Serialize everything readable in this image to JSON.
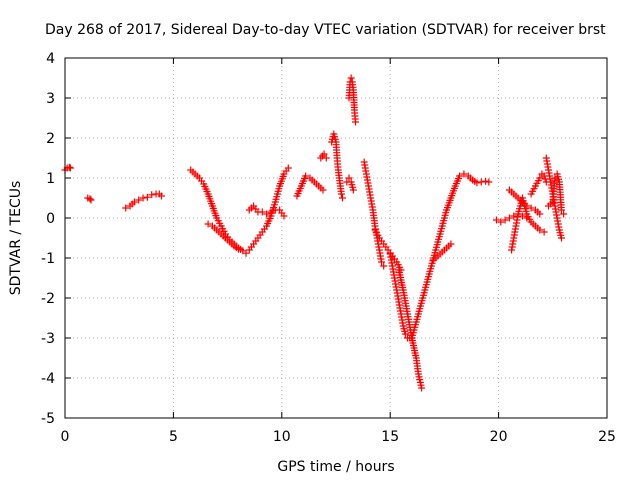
{
  "chart_data": {
    "type": "scatter",
    "title": "Day 268 of 2017, Sidereal Day-to-day VTEC variation (SDTVAR) for receiver brst",
    "xlabel": "GPS time / hours",
    "ylabel": "SDTVAR / TECUs",
    "xlim": [
      0,
      25
    ],
    "ylim": [
      -5,
      4
    ],
    "x_ticks": [
      0,
      5,
      10,
      15,
      20,
      25
    ],
    "y_ticks": [
      4,
      3,
      2,
      1,
      0,
      -1,
      -2,
      -3,
      -4,
      -5
    ],
    "grid": true,
    "legend": "none",
    "marker": "+",
    "color": "#ff0000",
    "segments": [
      [
        [
          0.0,
          1.2
        ],
        [
          0.1,
          1.25
        ],
        [
          0.2,
          1.27
        ],
        [
          0.25,
          1.25
        ]
      ],
      [
        [
          1.05,
          0.5
        ],
        [
          1.15,
          0.48
        ],
        [
          1.2,
          0.45
        ]
      ],
      [
        [
          2.8,
          0.25
        ],
        [
          3.0,
          0.3
        ],
        [
          3.2,
          0.4
        ],
        [
          3.4,
          0.45
        ],
        [
          3.6,
          0.5
        ],
        [
          3.8,
          0.52
        ],
        [
          4.0,
          0.58
        ],
        [
          4.2,
          0.6
        ],
        [
          4.35,
          0.6
        ],
        [
          4.45,
          0.55
        ]
      ],
      [
        [
          5.8,
          1.2
        ],
        [
          6.0,
          1.1
        ],
        [
          6.2,
          1.0
        ],
        [
          6.4,
          0.85
        ],
        [
          6.6,
          0.6
        ],
        [
          6.8,
          0.3
        ],
        [
          7.0,
          0.0
        ],
        [
          7.2,
          -0.2
        ],
        [
          7.4,
          -0.4
        ],
        [
          7.6,
          -0.55
        ],
        [
          7.8,
          -0.65
        ],
        [
          8.0,
          -0.75
        ],
        [
          8.2,
          -0.82
        ],
        [
          8.35,
          -0.88
        ],
        [
          8.5,
          -0.8
        ],
        [
          8.7,
          -0.65
        ],
        [
          8.9,
          -0.5
        ],
        [
          9.1,
          -0.35
        ],
        [
          9.3,
          -0.2
        ],
        [
          9.5,
          0.05
        ],
        [
          9.7,
          0.4
        ],
        [
          9.9,
          0.8
        ],
        [
          10.1,
          1.1
        ],
        [
          10.3,
          1.25
        ]
      ],
      [
        [
          6.6,
          -0.15
        ],
        [
          6.8,
          -0.2
        ],
        [
          7.0,
          -0.3
        ],
        [
          7.2,
          -0.4
        ],
        [
          7.4,
          -0.5
        ],
        [
          7.6,
          -0.6
        ],
        [
          7.8,
          -0.7
        ],
        [
          8.0,
          -0.78
        ]
      ],
      [
        [
          8.5,
          0.2
        ],
        [
          8.7,
          0.3
        ],
        [
          8.9,
          0.15
        ],
        [
          9.1,
          0.15
        ],
        [
          9.3,
          0.1
        ],
        [
          9.5,
          0.15
        ],
        [
          9.7,
          0.2
        ],
        [
          9.9,
          0.2
        ],
        [
          10.1,
          0.05
        ]
      ],
      [
        [
          10.7,
          0.55
        ],
        [
          10.9,
          0.8
        ],
        [
          11.1,
          1.05
        ],
        [
          11.3,
          1.0
        ],
        [
          11.5,
          0.9
        ],
        [
          11.7,
          0.8
        ],
        [
          11.9,
          0.7
        ]
      ],
      [
        [
          11.8,
          1.5
        ],
        [
          11.95,
          1.6
        ],
        [
          12.05,
          1.5
        ]
      ],
      [
        [
          12.3,
          1.9
        ],
        [
          12.4,
          2.1
        ],
        [
          12.5,
          1.9
        ],
        [
          12.55,
          1.5
        ],
        [
          12.6,
          1.2
        ],
        [
          12.65,
          1.0
        ],
        [
          12.7,
          0.8
        ],
        [
          12.75,
          0.6
        ],
        [
          12.8,
          0.5
        ]
      ],
      [
        [
          13.1,
          3.0
        ],
        [
          13.15,
          3.4
        ],
        [
          13.2,
          3.5
        ],
        [
          13.25,
          3.4
        ],
        [
          13.3,
          3.2
        ],
        [
          13.35,
          2.7
        ],
        [
          13.4,
          2.4
        ]
      ],
      [
        [
          13.0,
          0.9
        ],
        [
          13.1,
          1.0
        ],
        [
          13.2,
          0.9
        ],
        [
          13.3,
          0.7
        ]
      ],
      [
        [
          13.8,
          1.4
        ],
        [
          13.9,
          1.1
        ],
        [
          14.0,
          0.8
        ],
        [
          14.1,
          0.5
        ],
        [
          14.2,
          0.2
        ],
        [
          14.3,
          -0.2
        ],
        [
          14.4,
          -0.5
        ],
        [
          14.5,
          -0.8
        ],
        [
          14.6,
          -1.1
        ],
        [
          14.7,
          -1.2
        ]
      ],
      [
        [
          14.3,
          -0.3
        ],
        [
          14.5,
          -0.5
        ],
        [
          14.7,
          -0.65
        ],
        [
          14.9,
          -0.8
        ],
        [
          15.1,
          -0.95
        ],
        [
          15.3,
          -1.1
        ],
        [
          15.5,
          -1.3
        ]
      ],
      [
        [
          15.0,
          -0.9
        ],
        [
          15.1,
          -1.2
        ],
        [
          15.2,
          -1.5
        ],
        [
          15.3,
          -1.8
        ],
        [
          15.4,
          -2.1
        ],
        [
          15.5,
          -2.4
        ],
        [
          15.6,
          -2.7
        ],
        [
          15.7,
          -2.9
        ],
        [
          15.8,
          -3.0
        ],
        [
          15.9,
          -3.0
        ],
        [
          16.0,
          -3.0
        ]
      ],
      [
        [
          15.4,
          -1.3
        ],
        [
          15.6,
          -1.8
        ],
        [
          15.8,
          -2.4
        ],
        [
          16.0,
          -3.0
        ],
        [
          16.2,
          -3.5
        ],
        [
          16.3,
          -3.9
        ],
        [
          16.45,
          -4.25
        ]
      ],
      [
        [
          16.0,
          -3.0
        ],
        [
          16.2,
          -2.6
        ],
        [
          16.4,
          -2.2
        ],
        [
          16.6,
          -1.8
        ],
        [
          16.8,
          -1.4
        ],
        [
          17.0,
          -1.0
        ],
        [
          17.2,
          -0.6
        ],
        [
          17.4,
          -0.2
        ],
        [
          17.6,
          0.2
        ],
        [
          17.8,
          0.5
        ],
        [
          18.0,
          0.8
        ],
        [
          18.2,
          1.05
        ],
        [
          18.4,
          1.1
        ],
        [
          18.6,
          1.05
        ],
        [
          18.8,
          0.95
        ],
        [
          19.0,
          0.88
        ],
        [
          19.2,
          0.9
        ],
        [
          19.4,
          0.92
        ],
        [
          19.55,
          0.9
        ]
      ],
      [
        [
          17.0,
          -1.05
        ],
        [
          17.2,
          -0.95
        ],
        [
          17.4,
          -0.85
        ],
        [
          17.6,
          -0.75
        ],
        [
          17.8,
          -0.65
        ]
      ],
      [
        [
          19.9,
          -0.05
        ],
        [
          20.1,
          -0.1
        ],
        [
          20.3,
          -0.05
        ],
        [
          20.5,
          0.0
        ],
        [
          20.7,
          0.05
        ],
        [
          20.9,
          0.1
        ],
        [
          21.1,
          0.05
        ],
        [
          21.3,
          0.0
        ]
      ],
      [
        [
          20.6,
          -0.8
        ],
        [
          20.7,
          -0.5
        ],
        [
          20.8,
          -0.2
        ],
        [
          20.9,
          0.1
        ],
        [
          21.0,
          0.3
        ],
        [
          21.1,
          0.5
        ],
        [
          21.2,
          0.3
        ],
        [
          21.3,
          0.1
        ],
        [
          21.5,
          -0.1
        ],
        [
          21.7,
          -0.2
        ],
        [
          21.9,
          -0.3
        ],
        [
          22.1,
          -0.35
        ]
      ],
      [
        [
          20.5,
          0.7
        ],
        [
          20.7,
          0.6
        ],
        [
          20.9,
          0.5
        ],
        [
          21.1,
          0.4
        ],
        [
          21.3,
          0.3
        ],
        [
          21.5,
          0.25
        ],
        [
          21.7,
          0.2
        ],
        [
          21.9,
          0.1
        ]
      ],
      [
        [
          21.5,
          0.6
        ],
        [
          21.7,
          0.8
        ],
        [
          21.9,
          1.0
        ],
        [
          22.0,
          1.1
        ],
        [
          22.1,
          1.05
        ],
        [
          22.2,
          0.9
        ]
      ],
      [
        [
          22.2,
          1.5
        ],
        [
          22.3,
          1.2
        ],
        [
          22.4,
          0.9
        ],
        [
          22.5,
          0.6
        ],
        [
          22.6,
          0.3
        ],
        [
          22.7,
          0.0
        ],
        [
          22.8,
          -0.3
        ],
        [
          22.9,
          -0.5
        ]
      ],
      [
        [
          22.3,
          0.3
        ],
        [
          22.5,
          0.4
        ],
        [
          22.6,
          1.0
        ],
        [
          22.7,
          1.1
        ],
        [
          22.8,
          0.9
        ],
        [
          22.9,
          0.2
        ],
        [
          23.0,
          0.1
        ]
      ]
    ]
  }
}
